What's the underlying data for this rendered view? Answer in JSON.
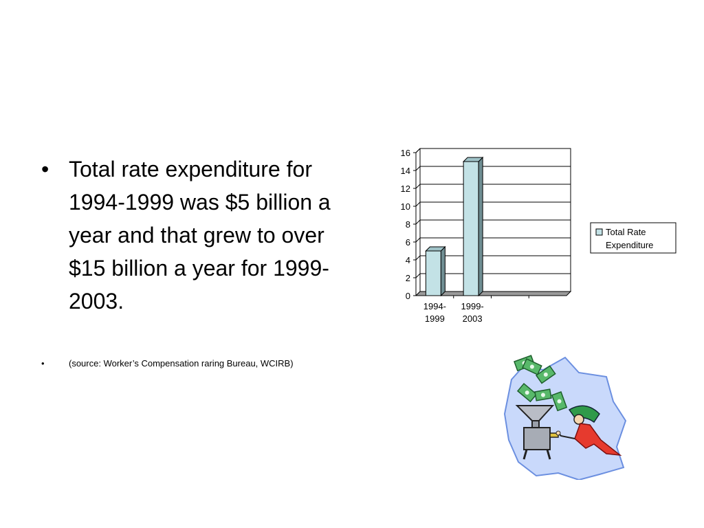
{
  "slide": {
    "bullet_char": "•",
    "main_text": "Total rate expenditure for 1994-1999 was $5 billion a year and that grew to over $15 billion a year for 1999-2003.",
    "source_text": "(source: Worker’s Compensation raring Bureau, WCIRB)"
  },
  "chart_data": {
    "type": "bar",
    "categories": [
      [
        "1994-",
        "1999"
      ],
      [
        "1999-",
        "2003"
      ],
      [
        "",
        ""
      ],
      [
        "",
        ""
      ]
    ],
    "series": [
      {
        "name": "Total Rate Expenditure",
        "values": [
          5,
          15,
          null,
          null
        ],
        "color": "#c3e2e6"
      }
    ],
    "ylim": [
      0,
      16
    ],
    "yticks": [
      0,
      2,
      4,
      6,
      8,
      10,
      12,
      14,
      16
    ],
    "ytick_labels": [
      "0",
      "2",
      "4",
      "6",
      "8",
      "10",
      "12",
      "14",
      "16"
    ],
    "legend_lines": [
      "Total Rate",
      "Expenditure"
    ],
    "legend_position": "right",
    "grid": true,
    "style": "3d-bar"
  },
  "colors": {
    "bar_face": "#c3e2e6",
    "bar_side": "#6f8d92",
    "bar_top": "#9fc2c7",
    "floor": "#9a9a9a"
  },
  "clipart": {
    "icon": "money-funnel-clipart"
  }
}
